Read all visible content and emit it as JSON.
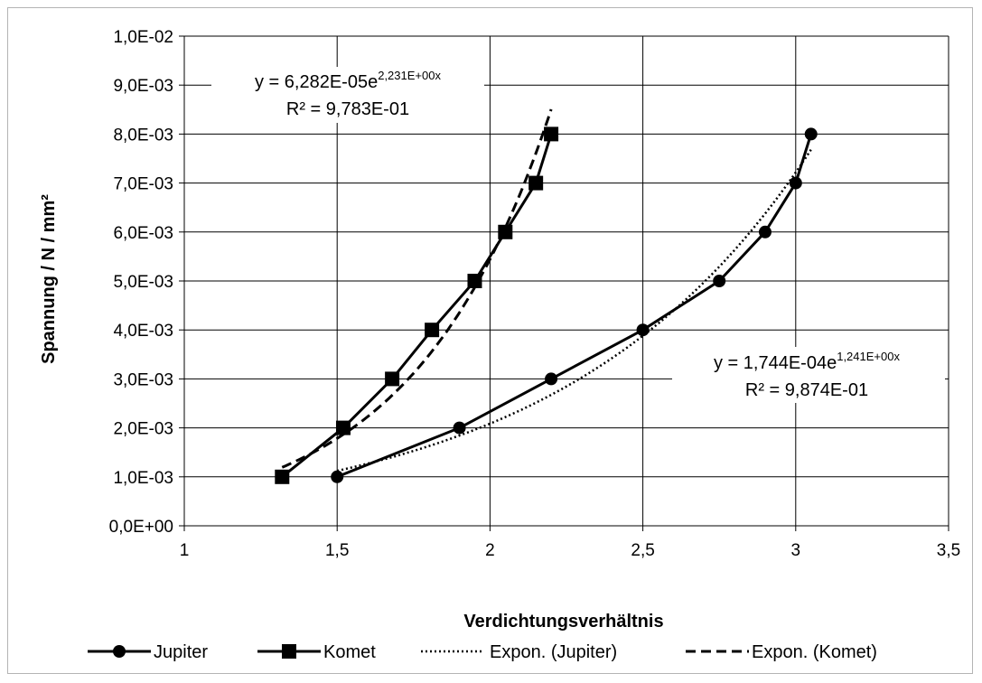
{
  "chart_data": {
    "type": "line",
    "title": "",
    "xlabel": "Verdichtungsverhältnis",
    "ylabel": "Spannung / N / mm²",
    "xlim": [
      1,
      3.5
    ],
    "ylim": [
      0,
      0.01
    ],
    "x_ticks": [
      "1",
      "1,5",
      "2",
      "2,5",
      "3",
      "3,5"
    ],
    "y_ticks": [
      "0,0E+00",
      "1,0E-03",
      "2,0E-03",
      "3,0E-03",
      "4,0E-03",
      "5,0E-03",
      "6,0E-03",
      "7,0E-03",
      "8,0E-03",
      "9,0E-03",
      "1,0E-02"
    ],
    "grid": true,
    "legend_position": "bottom",
    "series": [
      {
        "name": "Jupiter",
        "marker": "circle",
        "x": [
          1.5,
          1.9,
          2.2,
          2.5,
          2.75,
          2.9,
          3.0,
          3.05
        ],
        "y": [
          0.001,
          0.002,
          0.003,
          0.004,
          0.005,
          0.006,
          0.007,
          0.008
        ]
      },
      {
        "name": "Komet",
        "marker": "square",
        "x": [
          1.32,
          1.52,
          1.68,
          1.81,
          1.95,
          2.05,
          2.15,
          2.2
        ],
        "y": [
          0.001,
          0.002,
          0.003,
          0.004,
          0.005,
          0.006,
          0.007,
          0.008
        ]
      }
    ],
    "trendlines": [
      {
        "name": "Expon. (Jupiter)",
        "style": "dotted",
        "a": 0.0001744,
        "b": 1.241,
        "x_range": [
          1.5,
          3.05
        ],
        "equation_prefix": "y = 1,744E-04e",
        "equation_exponent": "1,241E+00x",
        "r2_text": "R² = 9,874E-01"
      },
      {
        "name": "Expon. (Komet)",
        "style": "dashed",
        "a": 6.282e-05,
        "b": 2.231,
        "x_range": [
          1.32,
          2.2
        ],
        "equation_prefix": "y = 6,282E-05e",
        "equation_exponent": "2,231E+00x",
        "r2_text": "R² = 9,783E-01"
      }
    ]
  }
}
